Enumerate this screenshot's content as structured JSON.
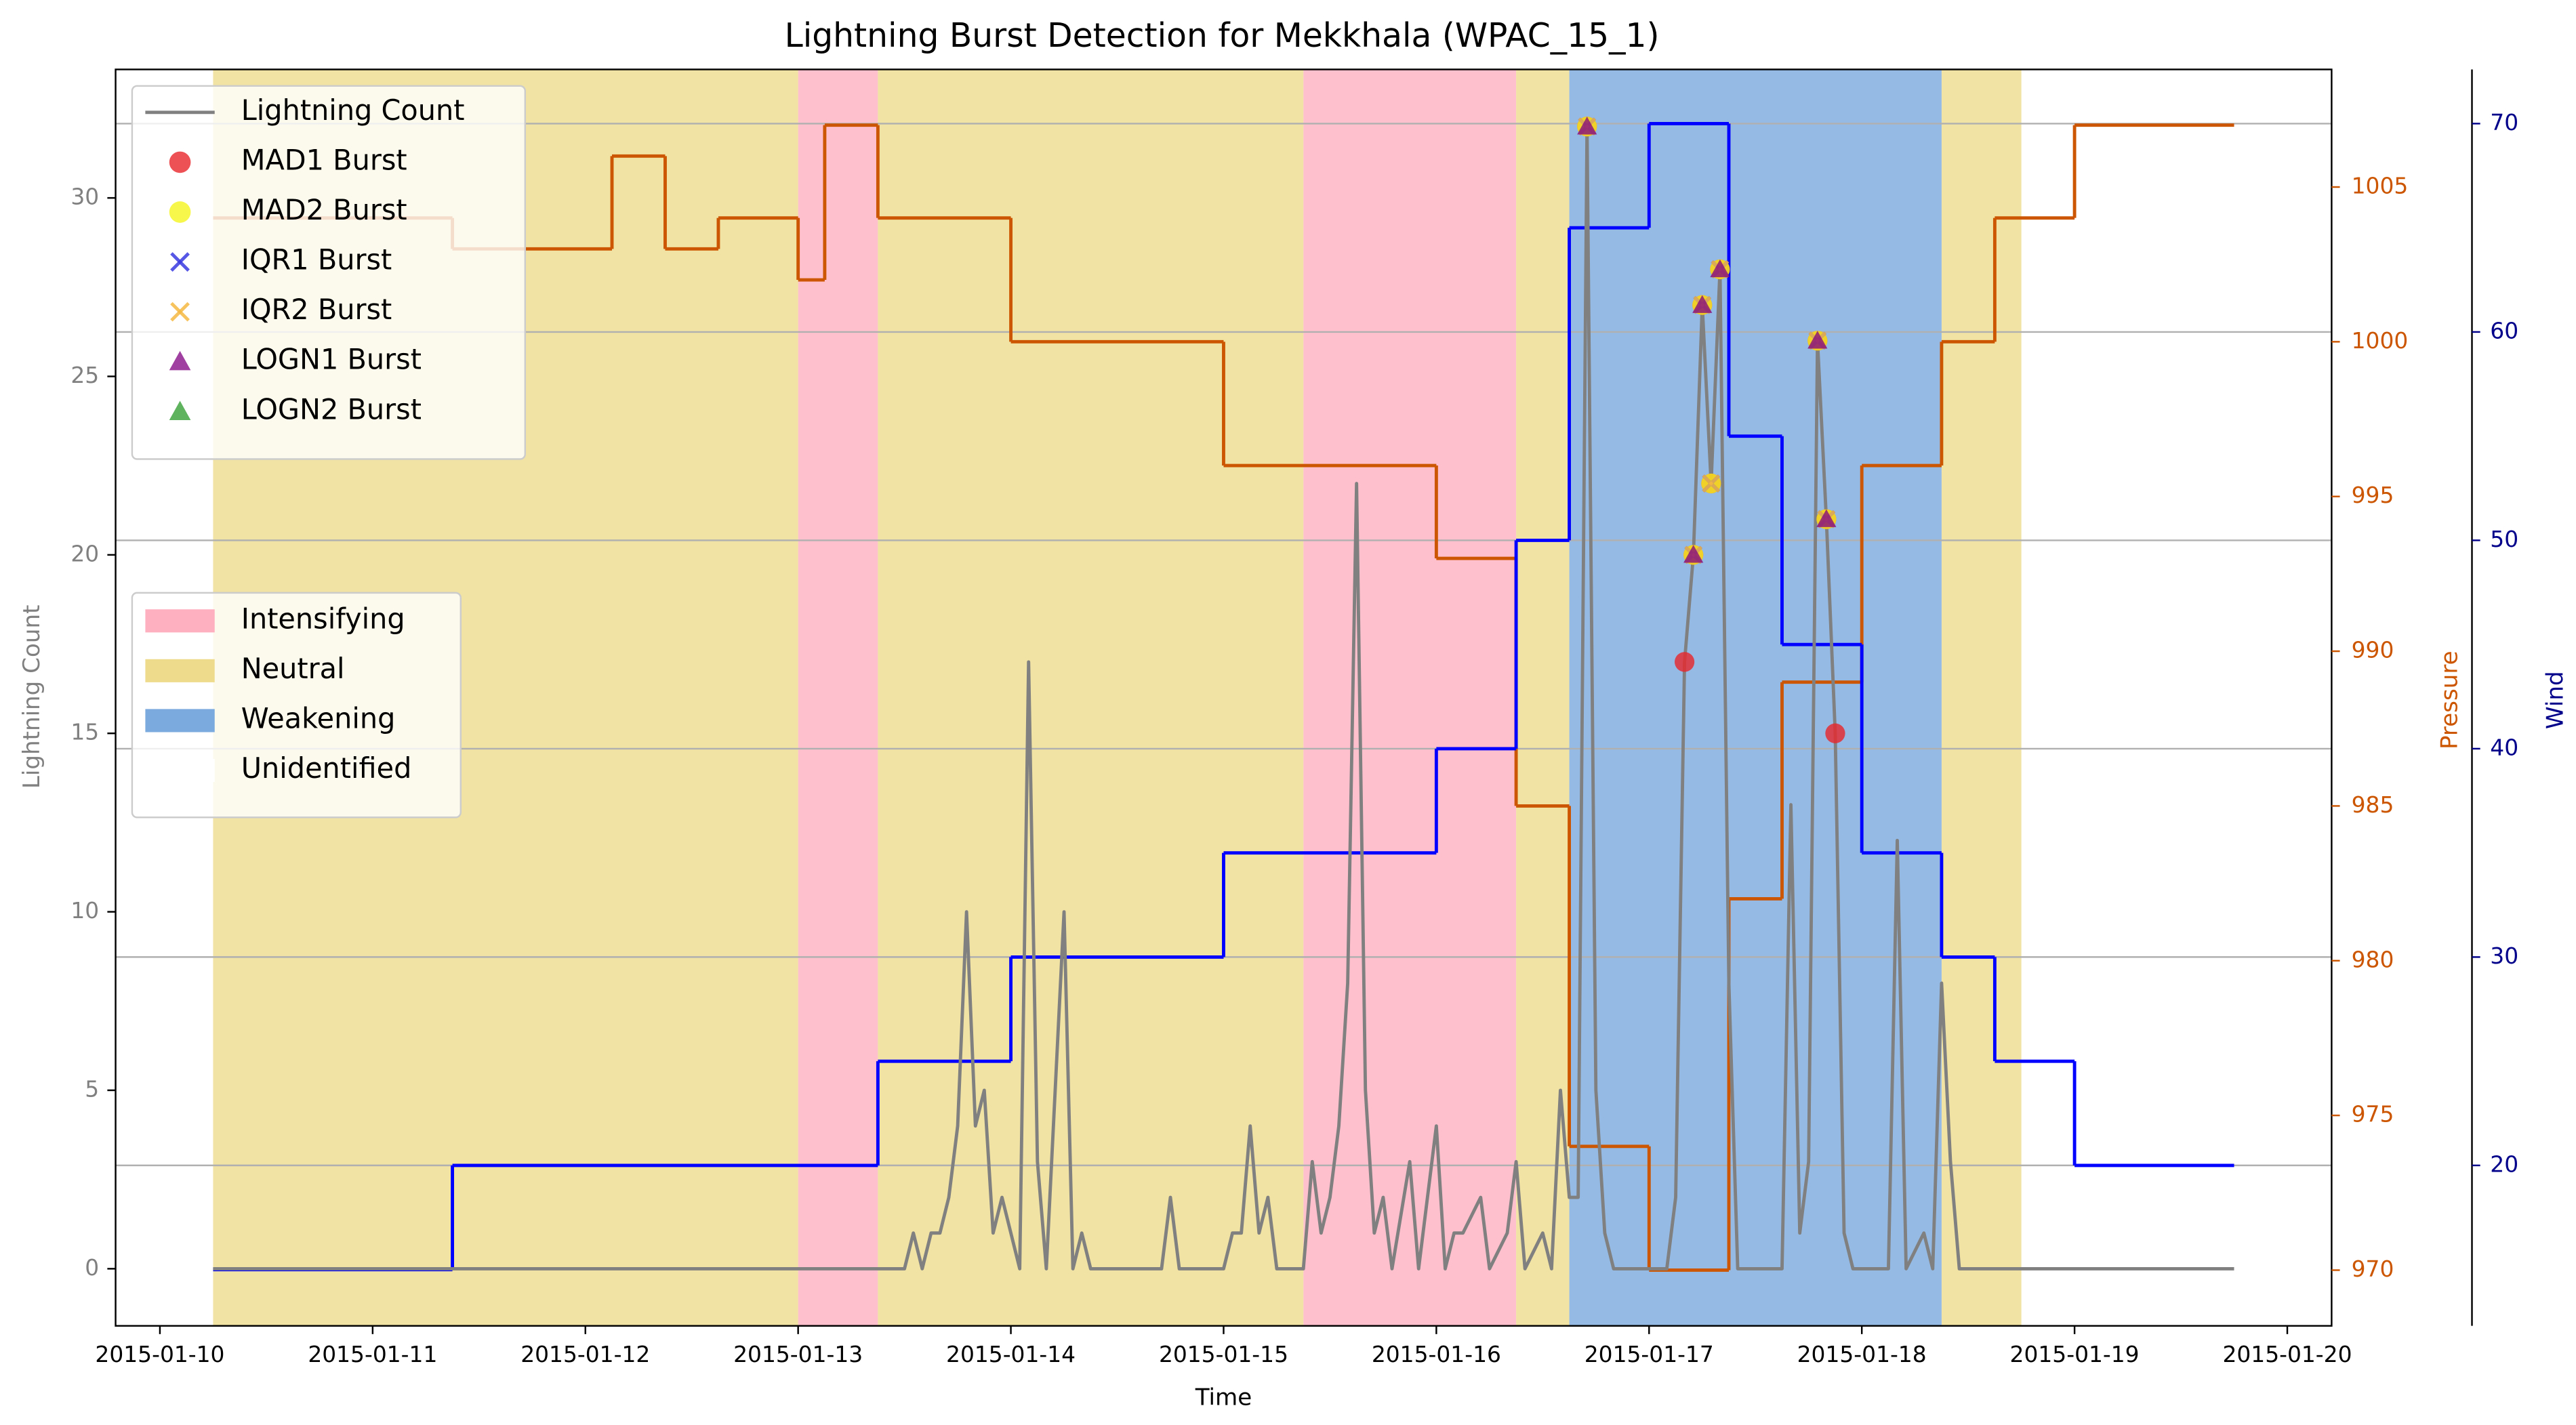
{
  "chart_data": {
    "type": "line",
    "title": "Lightning Burst Detection for Mekkhala (WPAC_15_1)",
    "xlabel": "Time",
    "ylabel": "Lightning Count",
    "y2label": "Pressure",
    "y3label": "Wind",
    "xlim": [
      "2015-01-09 19:00",
      "2015-01-20 05:00"
    ],
    "xticks": [
      "2015-01-10",
      "2015-01-11",
      "2015-01-12",
      "2015-01-13",
      "2015-01-14",
      "2015-01-15",
      "2015-01-16",
      "2015-01-17",
      "2015-01-18",
      "2015-01-19",
      "2015-01-20"
    ],
    "ylim": [
      -1.6,
      33.6
    ],
    "yticks": [
      0,
      5,
      10,
      15,
      20,
      25,
      30
    ],
    "y2lim": [
      968.2,
      1008.8
    ],
    "y2ticks": [
      970,
      975,
      980,
      985,
      990,
      995,
      1000,
      1005
    ],
    "y3lim": [
      12.3,
      72.6
    ],
    "y3ticks": [
      20,
      30,
      40,
      50,
      60,
      70
    ],
    "grid": true,
    "grid_axis": "y3",
    "label_colors": {
      "y": "#808080",
      "y2": "#cc5500",
      "y3": "#00008b"
    },
    "phases": [
      {
        "name": "Intensifying",
        "color": "#ffb0c0",
        "spans": [
          [
            "2015-01-13 00:00",
            "2015-01-13 09:00"
          ],
          [
            "2015-01-15 09:00",
            "2015-01-16 09:00"
          ]
        ]
      },
      {
        "name": "Neutral",
        "color": "#eedc8c",
        "spans": [
          [
            "2015-01-10 06:00",
            "2015-01-13 00:00"
          ],
          [
            "2015-01-13 09:00",
            "2015-01-15 09:00"
          ],
          [
            "2015-01-16 09:00",
            "2015-01-16 15:00"
          ],
          [
            "2015-01-18 09:00",
            "2015-01-18 18:00"
          ]
        ]
      },
      {
        "name": "Weakening",
        "color": "#7aaade",
        "spans": [
          [
            "2015-01-16 15:00",
            "2015-01-18 09:00"
          ]
        ]
      },
      {
        "name": "Unidentified",
        "color": "#ffffff",
        "spans": []
      }
    ],
    "series": [
      {
        "name": "Lightning Count",
        "style": "line",
        "color": "#808080",
        "axis": "y",
        "x": [
          "2015-01-10 06:00",
          "2015-01-13 12:00",
          "2015-01-13 13:00",
          "2015-01-13 14:00",
          "2015-01-13 15:00",
          "2015-01-13 16:00",
          "2015-01-13 17:00",
          "2015-01-13 18:00",
          "2015-01-13 19:00",
          "2015-01-13 20:00",
          "2015-01-13 21:00",
          "2015-01-13 22:00",
          "2015-01-13 23:00",
          "2015-01-14 00:00",
          "2015-01-14 01:00",
          "2015-01-14 02:00",
          "2015-01-14 03:00",
          "2015-01-14 04:00",
          "2015-01-14 06:00",
          "2015-01-14 07:00",
          "2015-01-14 08:00",
          "2015-01-14 09:00",
          "2015-01-14 17:00",
          "2015-01-14 18:00",
          "2015-01-14 19:00",
          "2015-01-15 00:00",
          "2015-01-15 01:00",
          "2015-01-15 02:00",
          "2015-01-15 03:00",
          "2015-01-15 04:00",
          "2015-01-15 05:00",
          "2015-01-15 06:00",
          "2015-01-15 09:00",
          "2015-01-15 10:00",
          "2015-01-15 11:00",
          "2015-01-15 12:00",
          "2015-01-15 13:00",
          "2015-01-15 14:00",
          "2015-01-15 15:00",
          "2015-01-15 16:00",
          "2015-01-15 17:00",
          "2015-01-15 18:00",
          "2015-01-15 19:00",
          "2015-01-15 21:00",
          "2015-01-15 22:00",
          "2015-01-16 00:00",
          "2015-01-16 01:00",
          "2015-01-16 02:00",
          "2015-01-16 03:00",
          "2015-01-16 05:00",
          "2015-01-16 06:00",
          "2015-01-16 08:00",
          "2015-01-16 09:00",
          "2015-01-16 10:00",
          "2015-01-16 12:00",
          "2015-01-16 13:00",
          "2015-01-16 14:00",
          "2015-01-16 15:00",
          "2015-01-16 16:00",
          "2015-01-16 17:00",
          "2015-01-16 18:00",
          "2015-01-16 19:00",
          "2015-01-16 20:00",
          "2015-01-17 02:00",
          "2015-01-17 03:00",
          "2015-01-17 04:00",
          "2015-01-17 05:00",
          "2015-01-17 06:00",
          "2015-01-17 07:00",
          "2015-01-17 08:00",
          "2015-01-17 09:00",
          "2015-01-17 10:00",
          "2015-01-17 15:00",
          "2015-01-17 16:00",
          "2015-01-17 17:00",
          "2015-01-17 18:00",
          "2015-01-17 19:00",
          "2015-01-17 20:00",
          "2015-01-17 21:00",
          "2015-01-17 22:00",
          "2015-01-17 23:00",
          "2015-01-18 03:00",
          "2015-01-18 04:00",
          "2015-01-18 05:00",
          "2015-01-18 07:00",
          "2015-01-18 08:00",
          "2015-01-18 09:00",
          "2015-01-18 10:00",
          "2015-01-18 11:00",
          "2015-01-19 18:00"
        ],
        "values": [
          0,
          0,
          1,
          0,
          1,
          1,
          2,
          4,
          10,
          4,
          5,
          1,
          2,
          1,
          0,
          17,
          3,
          0,
          10,
          0,
          1,
          0,
          0,
          2,
          0,
          0,
          1,
          1,
          4,
          1,
          2,
          0,
          0,
          3,
          1,
          2,
          4,
          8,
          22,
          5,
          1,
          2,
          0,
          3,
          0,
          4,
          0,
          1,
          1,
          2,
          0,
          1,
          3,
          0,
          1,
          0,
          5,
          2,
          2,
          32,
          5,
          1,
          0,
          0,
          2,
          17,
          20,
          27,
          22,
          28,
          8,
          0,
          0,
          13,
          1,
          3,
          26,
          21,
          15,
          1,
          0,
          0,
          12,
          0,
          1,
          0,
          8,
          3,
          0,
          0
        ]
      },
      {
        "name": "MAD1 Burst",
        "style": "marker",
        "marker": "o",
        "color": "#e8262a",
        "axis": "y",
        "x": [
          "2015-01-16 17:00",
          "2015-01-17 04:00",
          "2015-01-17 05:00",
          "2015-01-17 06:00",
          "2015-01-17 07:00",
          "2015-01-17 08:00",
          "2015-01-17 19:00",
          "2015-01-17 20:00",
          "2015-01-17 21:00"
        ],
        "values": [
          32,
          17,
          20,
          27,
          22,
          28,
          26,
          21,
          15
        ]
      },
      {
        "name": "MAD2 Burst",
        "style": "marker",
        "marker": "o",
        "color": "#f5f51e",
        "axis": "y",
        "x": [
          "2015-01-16 17:00",
          "2015-01-17 05:00",
          "2015-01-17 06:00",
          "2015-01-17 07:00",
          "2015-01-17 08:00",
          "2015-01-17 19:00",
          "2015-01-17 20:00"
        ],
        "values": [
          32,
          20,
          27,
          22,
          28,
          26,
          21
        ]
      },
      {
        "name": "IQR1 Burst",
        "style": "marker",
        "marker": "x",
        "color": "#3a3ae0",
        "axis": "y",
        "x": [
          "2015-01-16 17:00",
          "2015-01-17 05:00",
          "2015-01-17 06:00",
          "2015-01-17 07:00",
          "2015-01-17 08:00",
          "2015-01-17 19:00",
          "2015-01-17 20:00"
        ],
        "values": [
          32,
          20,
          27,
          22,
          28,
          26,
          21
        ]
      },
      {
        "name": "IQR2 Burst",
        "style": "marker",
        "marker": "x",
        "color": "#f5b942",
        "axis": "y",
        "x": [
          "2015-01-16 17:00",
          "2015-01-17 05:00",
          "2015-01-17 06:00",
          "2015-01-17 07:00",
          "2015-01-17 08:00",
          "2015-01-17 19:00",
          "2015-01-17 20:00"
        ],
        "values": [
          32,
          20,
          27,
          22,
          28,
          26,
          21
        ]
      },
      {
        "name": "LOGN1 Burst",
        "style": "marker",
        "marker": "^",
        "color": "#800080",
        "axis": "y",
        "x": [
          "2015-01-16 17:00",
          "2015-01-17 05:00",
          "2015-01-17 06:00",
          "2015-01-17 08:00",
          "2015-01-17 19:00",
          "2015-01-17 20:00"
        ],
        "values": [
          32,
          20,
          27,
          28,
          26,
          21
        ]
      },
      {
        "name": "LOGN2 Burst",
        "style": "marker",
        "marker": "^",
        "color": "#2a9a2a",
        "axis": "y",
        "x": [],
        "values": []
      },
      {
        "style": "step",
        "color": "#cc5500",
        "axis": "y2",
        "x": [
          "2015-01-10 06:00",
          "2015-01-11 09:00",
          "2015-01-12 03:00",
          "2015-01-12 09:00",
          "2015-01-12 15:00",
          "2015-01-13 00:00",
          "2015-01-13 03:00",
          "2015-01-13 09:00",
          "2015-01-14 00:00",
          "2015-01-15 00:00",
          "2015-01-16 00:00",
          "2015-01-16 09:00",
          "2015-01-16 15:00",
          "2015-01-17 00:00",
          "2015-01-17 09:00",
          "2015-01-17 15:00",
          "2015-01-18 00:00",
          "2015-01-18 09:00",
          "2015-01-18 15:00",
          "2015-01-19 00:00",
          "2015-01-19 18:00"
        ],
        "values": [
          1004,
          1003,
          1006,
          1003,
          1004,
          1002,
          1007,
          1004,
          1000,
          996,
          993,
          985,
          974,
          970,
          982,
          989,
          996,
          1000,
          1004,
          1007,
          1007
        ]
      },
      {
        "style": "step",
        "color": "#0000ff",
        "axis": "y3",
        "x": [
          "2015-01-10 06:00",
          "2015-01-11 09:00",
          "2015-01-13 09:00",
          "2015-01-14 00:00",
          "2015-01-15 00:00",
          "2015-01-16 00:00",
          "2015-01-16 09:00",
          "2015-01-16 15:00",
          "2015-01-17 00:00",
          "2015-01-17 09:00",
          "2015-01-17 15:00",
          "2015-01-18 00:00",
          "2015-01-18 09:00",
          "2015-01-18 15:00",
          "2015-01-19 00:00",
          "2015-01-19 18:00"
        ],
        "values": [
          15,
          20,
          25,
          30,
          35,
          40,
          50,
          65,
          70,
          55,
          45,
          35,
          30,
          25,
          20,
          20
        ]
      }
    ]
  }
}
